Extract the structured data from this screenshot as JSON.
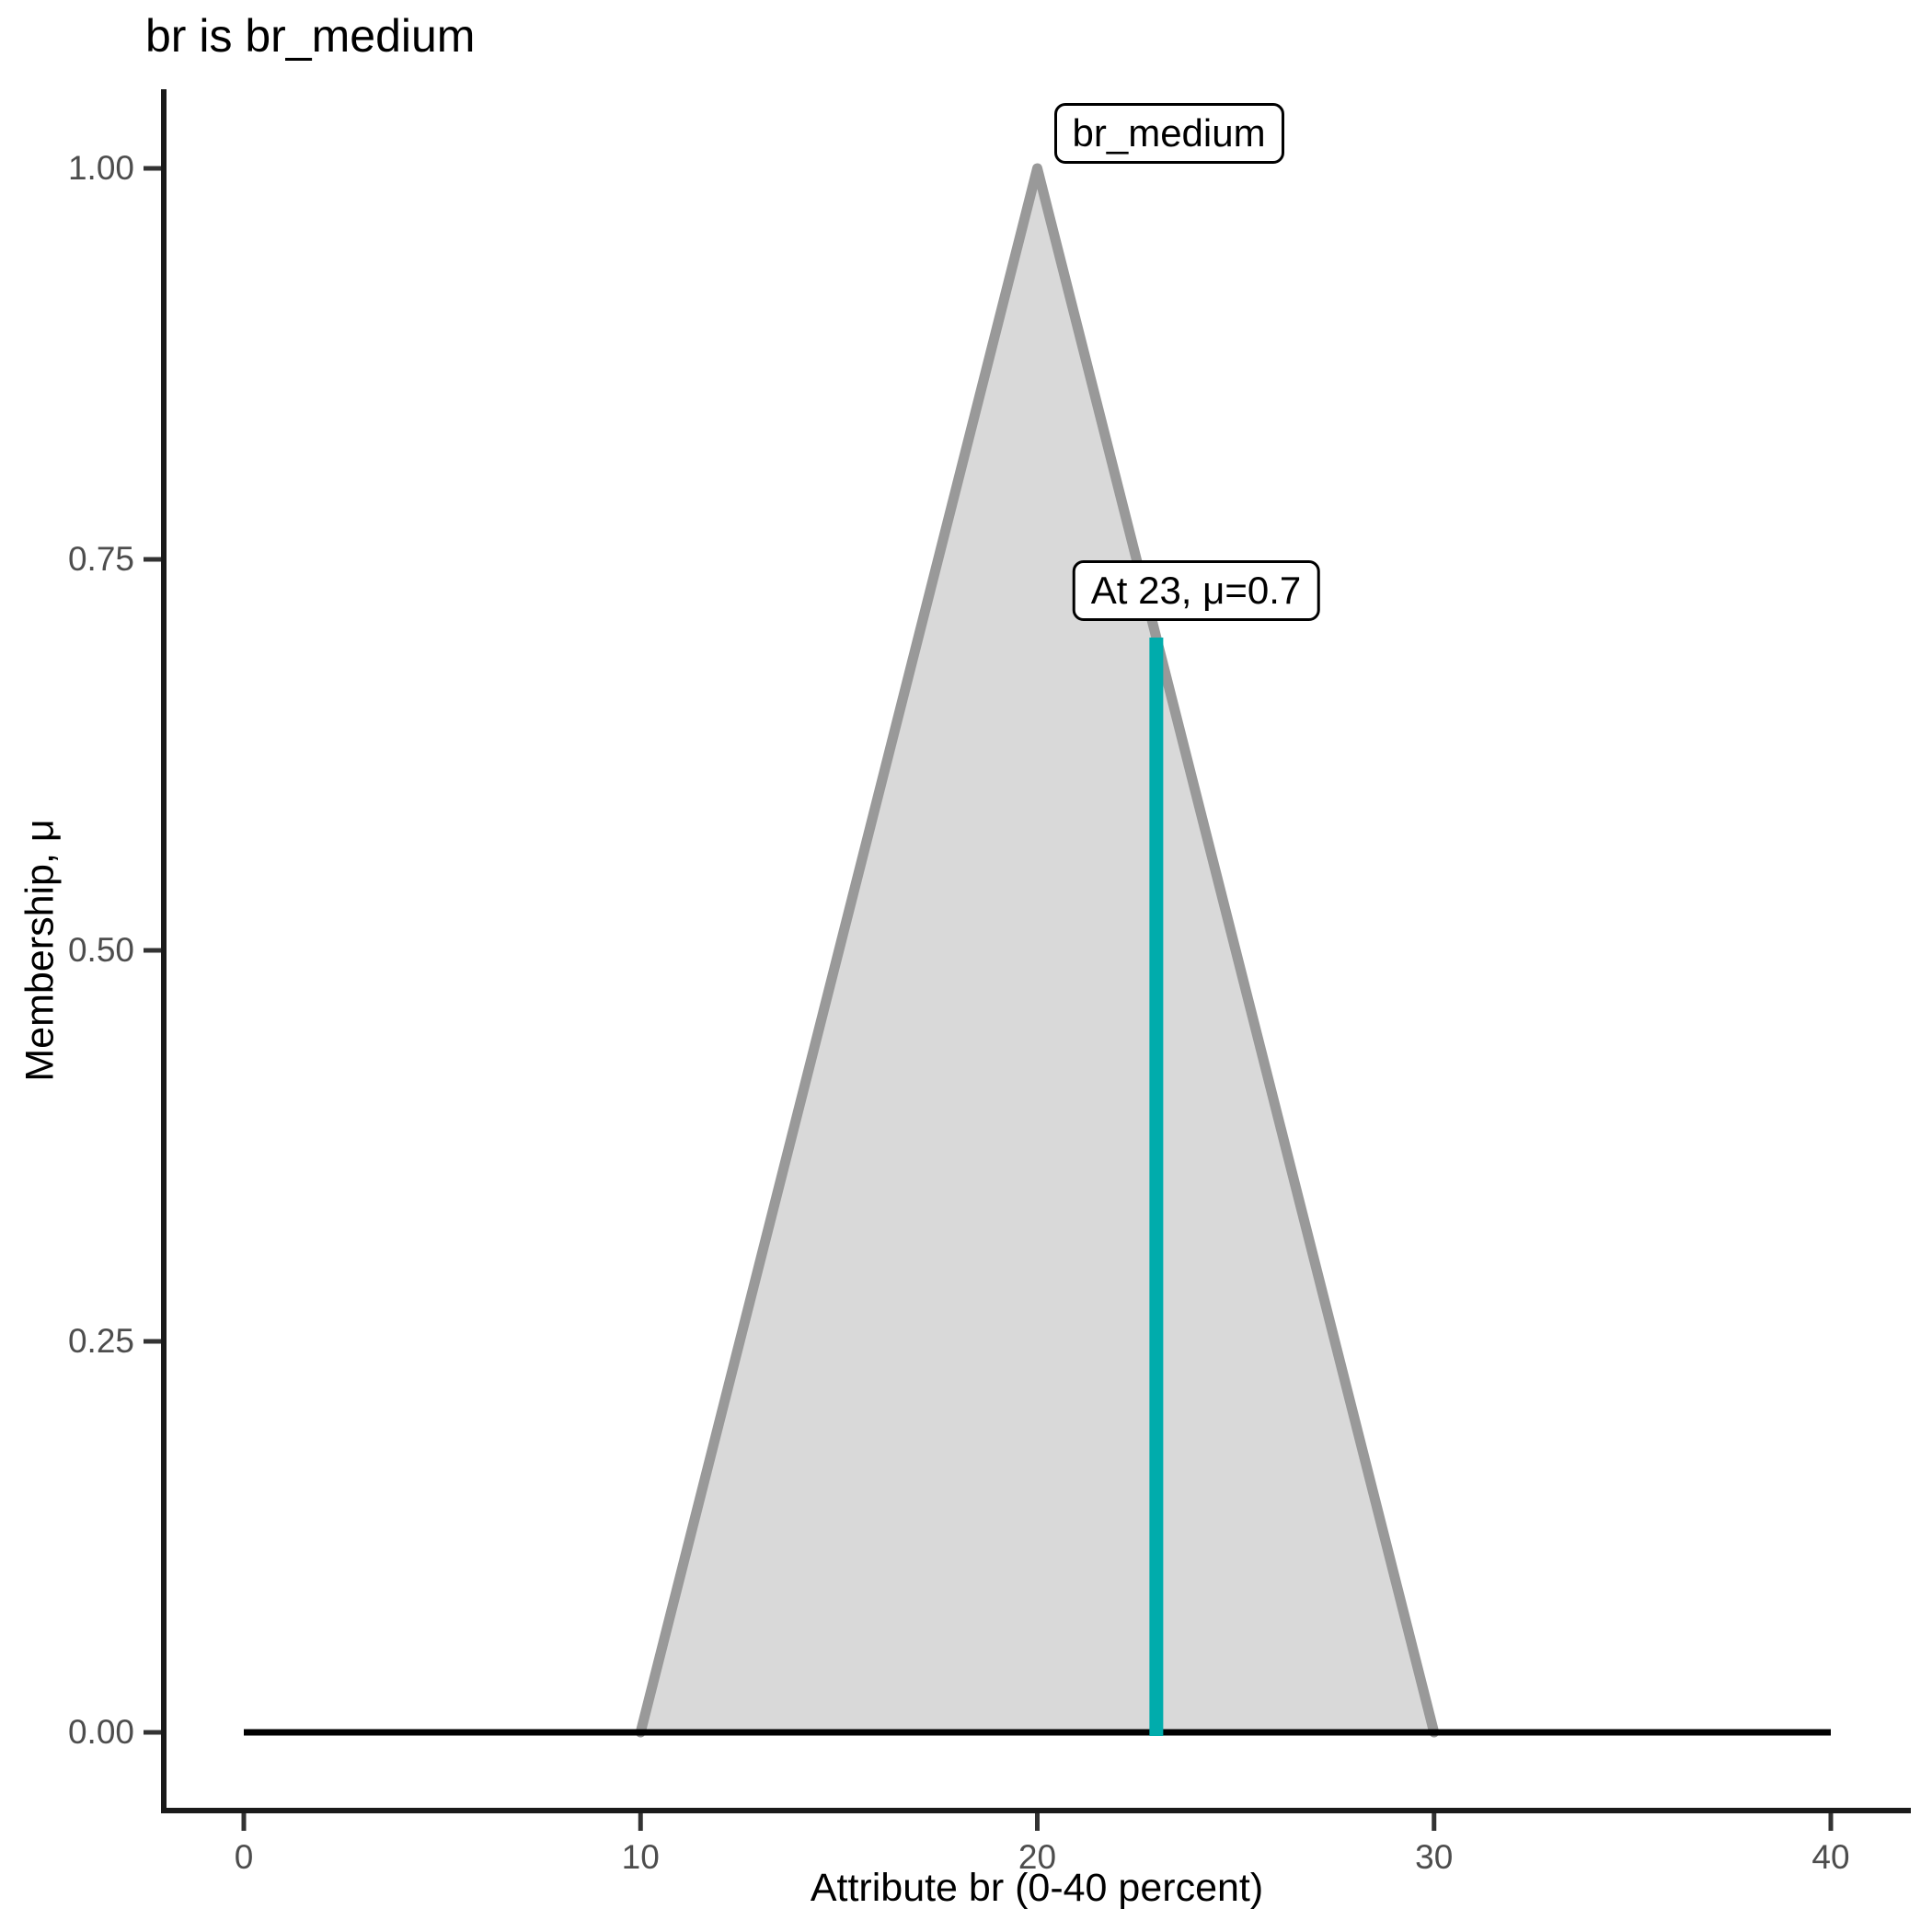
{
  "chart_data": {
    "type": "area",
    "title": "br is br_medium",
    "xlabel": "Attribute br (0-40 percent)",
    "ylabel": "Membership, μ",
    "xlim": [
      0,
      40
    ],
    "ylim": [
      0,
      1
    ],
    "grid": false,
    "legend": "none",
    "x_ticks": [
      {
        "value": 0,
        "label": "0"
      },
      {
        "value": 10,
        "label": "10"
      },
      {
        "value": 20,
        "label": "20"
      },
      {
        "value": 30,
        "label": "30"
      },
      {
        "value": 40,
        "label": "40"
      }
    ],
    "y_ticks": [
      {
        "value": 0.0,
        "label": "0.00"
      },
      {
        "value": 0.25,
        "label": "0.25"
      },
      {
        "value": 0.5,
        "label": "0.50"
      },
      {
        "value": 0.75,
        "label": "0.75"
      },
      {
        "value": 1.0,
        "label": "1.00"
      }
    ],
    "series": [
      {
        "name": "br_medium",
        "shape": "triangular membership function",
        "x": [
          0,
          10,
          20,
          30,
          40
        ],
        "mu": [
          0,
          0,
          1,
          0,
          0
        ]
      }
    ],
    "set_label": "br_medium",
    "marker": {
      "x": 23,
      "mu": 0.7,
      "label": "At 23, μ=0.7"
    },
    "colors": {
      "area_fill": "#d9d9d9",
      "area_stroke": "#999999",
      "marker_bar": "#00acac",
      "baseline": "#000000",
      "axis_line": "#1a1a1a",
      "tick_mark": "#333333",
      "tick_text": "#4d4d4d",
      "text": "#000000"
    }
  }
}
